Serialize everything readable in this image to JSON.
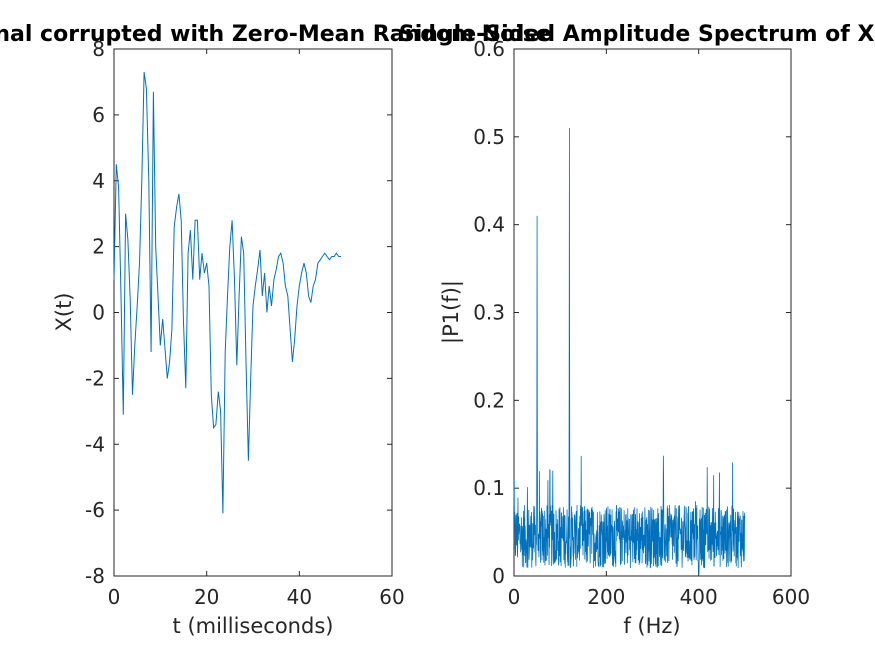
{
  "chart_data": [
    {
      "type": "line",
      "title": "Signal corrupted with Zero-Mean Random Noise",
      "xlabel": "t (milliseconds)",
      "ylabel": "X(t)",
      "xlim": [
        0,
        60
      ],
      "ylim": [
        -8,
        8
      ],
      "xticks": [
        "0",
        "20",
        "40",
        "60"
      ],
      "yticks": [
        "-8",
        "-6",
        "-4",
        "-2",
        "0",
        "2",
        "4",
        "6",
        "8"
      ],
      "grid": false,
      "color": "#0072BD",
      "series": [
        {
          "x": [
            0,
            0.5,
            1,
            1.5,
            2,
            2.5,
            3,
            3.5,
            4,
            4.5,
            5,
            5.5,
            6,
            6.5,
            7,
            7.5,
            8,
            8.5,
            9,
            9.5,
            10,
            10.5,
            11,
            11.5,
            12,
            12.5,
            13,
            13.5,
            14,
            14.5,
            15,
            15.5,
            16,
            16.5,
            17,
            17.5,
            18,
            18.5,
            19,
            19.5,
            20,
            20.5,
            21,
            21.5,
            22,
            22.5,
            23,
            23.5,
            24,
            24.5,
            25,
            25.5,
            26,
            26.5,
            27,
            27.5,
            28,
            28.5,
            29,
            29.5,
            30,
            30.5,
            31,
            31.5,
            32,
            32.5,
            33,
            33.5,
            34,
            34.5,
            35,
            35.5,
            36,
            36.5,
            37,
            37.5,
            38,
            38.5,
            39,
            39.5,
            40,
            40.5,
            41,
            41.5,
            42,
            42.5,
            43,
            43.5,
            44,
            44.5,
            45,
            45.5,
            46,
            46.5,
            47,
            47.5,
            48,
            48.5,
            49
          ],
          "y": [
            1.0,
            4.5,
            3.8,
            0.5,
            -3.1,
            3.0,
            2.2,
            0.4,
            -2.5,
            -1.0,
            0.2,
            1.5,
            4.0,
            7.3,
            6.8,
            4.0,
            -1.2,
            6.7,
            2.0,
            0.5,
            -1.0,
            -0.2,
            -1.1,
            -2.0,
            -1.5,
            -0.5,
            2.6,
            3.2,
            3.6,
            2.8,
            -0.3,
            -2.3,
            1.8,
            2.5,
            1.0,
            2.8,
            2.8,
            1.0,
            1.8,
            1.2,
            1.5,
            0.8,
            -2.5,
            -3.5,
            -3.4,
            -2.4,
            -3.0,
            -6.1,
            -1.2,
            0.5,
            2.0,
            2.8,
            1.0,
            -1.6,
            0.5,
            2.3,
            1.8,
            -1.5,
            -4.5,
            -2.0,
            0.2,
            0.8,
            1.3,
            1.9,
            0.5,
            1.2,
            0.0,
            0.8,
            0.2,
            1.0,
            1.3,
            1.7,
            1.8,
            1.5,
            0.8,
            0.5,
            -0.5,
            -1.5,
            -0.8,
            0.2,
            0.8,
            1.2,
            1.5,
            1.2,
            0.5,
            0.3,
            0.8,
            1.0,
            1.5,
            1.6,
            1.7,
            1.8,
            1.7,
            1.6,
            1.7,
            1.7,
            1.8,
            1.7,
            1.7
          ]
        }
      ]
    },
    {
      "type": "line",
      "title": "Single-Sided Amplitude Spectrum of X(t)",
      "xlabel": "f (Hz)",
      "ylabel": "|P1(f)|",
      "xlim": [
        0,
        600
      ],
      "ylim": [
        0,
        0.6
      ],
      "xticks": [
        "0",
        "200",
        "400",
        "600"
      ],
      "yticks": [
        "0",
        "0.1",
        "0.2",
        "0.3",
        "0.4",
        "0.5",
        "0.6"
      ],
      "grid": false,
      "color": "#0072BD",
      "peaks": [
        {
          "f": 50,
          "amplitude": 0.41
        },
        {
          "f": 120,
          "amplitude": 0.51
        }
      ],
      "noise_floor": {
        "f_range": [
          0,
          500
        ],
        "mean_amplitude": 0.045,
        "max_amplitude": 0.14
      }
    }
  ]
}
